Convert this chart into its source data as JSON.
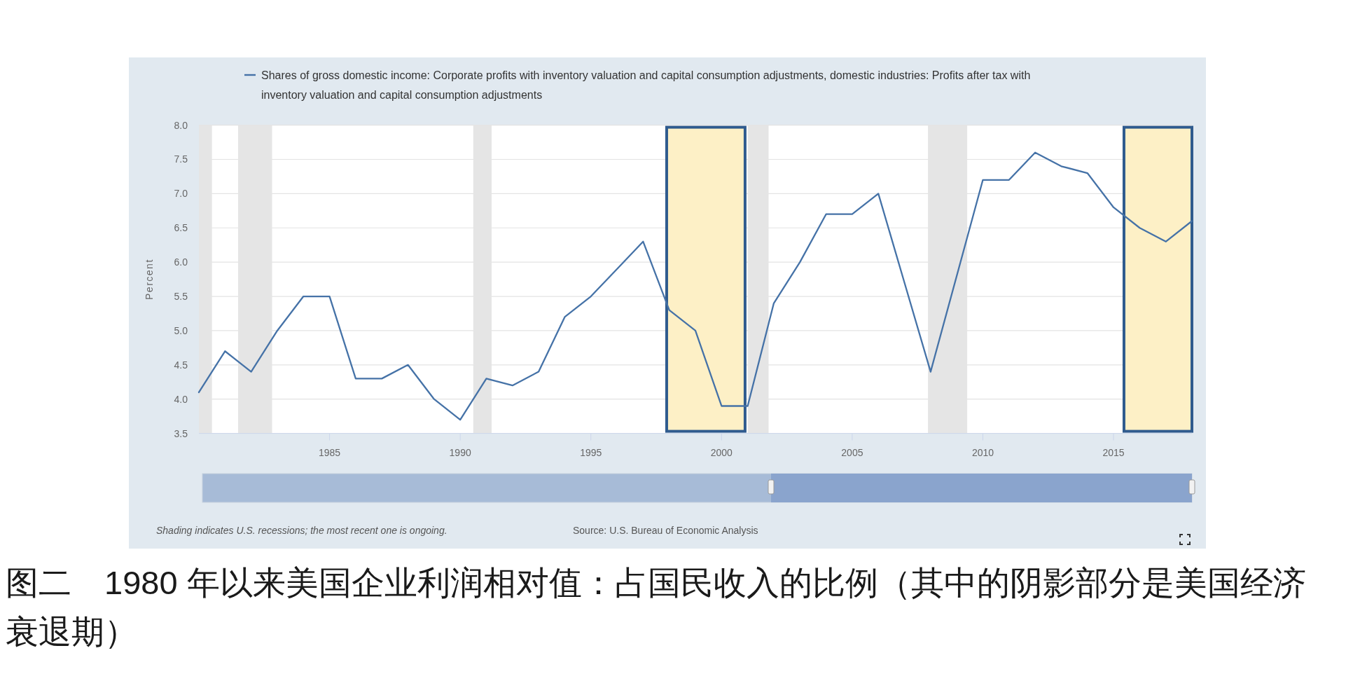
{
  "chart_data": {
    "type": "line",
    "title": "图二　1980 年以来美国企业利润相对值：占国民收入的比例（其中的阴影部分是美国经济衰退期）",
    "ylabel": "Percent",
    "x": [
      1980,
      1981,
      1982,
      1983,
      1984,
      1985,
      1986,
      1987,
      1988,
      1989,
      1990,
      1991,
      1992,
      1993,
      1994,
      1995,
      1996,
      1997,
      1998,
      1999,
      2000,
      2001,
      2002,
      2003,
      2004,
      2005,
      2006,
      2007,
      2008,
      2009,
      2010,
      2011,
      2012,
      2013,
      2014,
      2015,
      2016,
      2017,
      2018
    ],
    "series": [
      {
        "name": "Shares of gross domestic income: Corporate profits with inventory valuation and capital consumption adjustments, domestic industries: Profits after tax with inventory valuation and capital consumption adjustments",
        "color": "#4572a7",
        "values": [
          4.1,
          4.7,
          4.4,
          5.0,
          5.5,
          5.5,
          4.3,
          4.3,
          4.5,
          4.0,
          3.7,
          4.3,
          4.2,
          4.4,
          5.2,
          5.5,
          5.9,
          6.3,
          5.3,
          5.0,
          3.9,
          3.9,
          5.4,
          6.0,
          6.7,
          6.7,
          7.0,
          5.7,
          4.4,
          5.8,
          7.2,
          7.2,
          7.6,
          7.4,
          7.3,
          6.8,
          6.5,
          6.3,
          6.6
        ]
      }
    ],
    "xlim": [
      1980,
      2018
    ],
    "ylim": [
      3.5,
      8
    ],
    "xticks": [
      1985,
      1990,
      1995,
      2000,
      2005,
      2010,
      2015
    ],
    "yticks": [
      3.5,
      {
        "value": 4,
        "label": "4.0"
      },
      4.5,
      {
        "value": 5,
        "label": "5.0"
      },
      5.5,
      {
        "value": 6,
        "label": "6.0"
      },
      6.5,
      {
        "value": 7,
        "label": "7.0"
      },
      7.5,
      {
        "value": 8,
        "label": "8.0"
      }
    ],
    "grid": "y",
    "legend": "top left",
    "bands": [
      {
        "axis": "x",
        "from": 1980,
        "to": 1980.5,
        "color": "#e5e5e5"
      },
      {
        "axis": "x",
        "from": 1981.5,
        "to": 1982.8,
        "color": "#e5e5e5"
      },
      {
        "axis": "x",
        "from": 1990.5,
        "to": 1991.2,
        "color": "#e5e5e5"
      },
      {
        "axis": "x",
        "from": 2001,
        "to": 2001.8,
        "color": "#e5e5e5"
      },
      {
        "axis": "x",
        "from": 2007.9,
        "to": 2009.4,
        "color": "#e5e5e5"
      },
      {
        "axis": "x",
        "from": 1997.9,
        "to": 2000.9,
        "color": "#fdf0c6"
      },
      {
        "axis": "x",
        "from": 2015.4,
        "to": 2018,
        "color": "#fdf0c6"
      }
    ],
    "annotations": [
      "Shading indicates U.S. recessions; the most recent one is ongoing.",
      "Source: U.S. Bureau of Economic Analysis"
    ]
  }
}
